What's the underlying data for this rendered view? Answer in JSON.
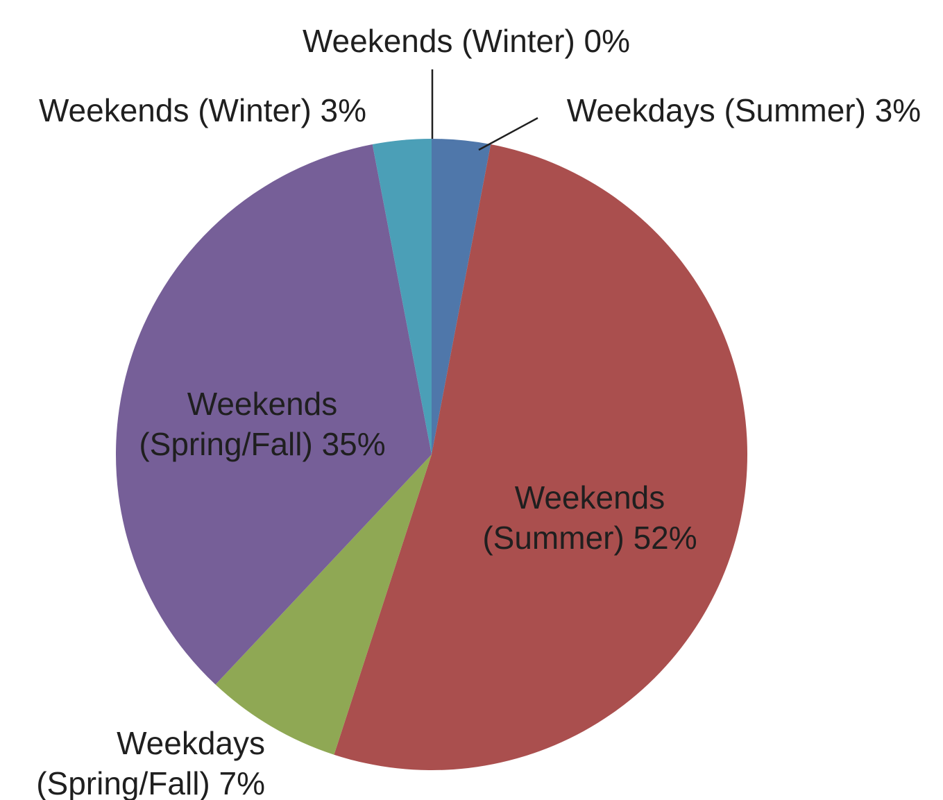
{
  "chart_data": {
    "type": "pie",
    "title": "",
    "start": "top",
    "direction": "clockwise",
    "slices": [
      {
        "name": "Weekdays (Summer)",
        "value": 3,
        "color": "#4f77aa",
        "label_lines": [
          "Weekdays (Summer) 3%"
        ]
      },
      {
        "name": "Weekends (Summer)",
        "value": 52,
        "color": "#aa4f4e",
        "label_lines": [
          "Weekends",
          "(Summer) 52%"
        ]
      },
      {
        "name": "Weekdays (Spring/Fall)",
        "value": 7,
        "color": "#8fa854",
        "label_lines": [
          "Weekdays",
          "(Spring/Fall) 7%"
        ]
      },
      {
        "name": "Weekends (Spring/Fall)",
        "value": 35,
        "color": "#765f98",
        "label_lines": [
          "Weekends",
          "(Spring/Fall) 35%"
        ]
      },
      {
        "name": "Weekends (Winter)",
        "value": 3,
        "color": "#4b9fb7",
        "label_lines": [
          "Weekends (Winter) 3%"
        ]
      },
      {
        "name": "Weekends (Winter)",
        "value": 0,
        "color": "#c77d35",
        "label_lines": [
          "Weekends (Winter) 0%"
        ]
      }
    ]
  }
}
